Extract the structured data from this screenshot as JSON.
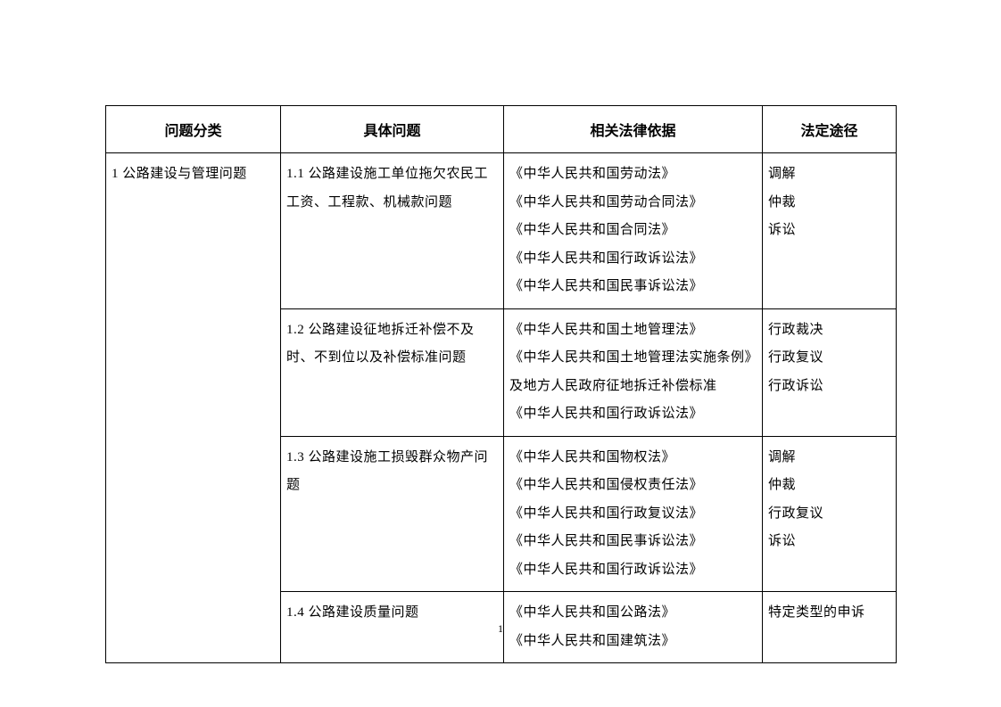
{
  "table": {
    "headers": {
      "category": "问题分类",
      "issue": "具体问题",
      "legal": "相关法律依据",
      "channel": "法定途径"
    },
    "category_label": "1 公路建设与管理问题",
    "rows": [
      {
        "issue": "1.1 公路建设施工单位拖欠农民工工资、工程款、机械款问题",
        "legal": "《中华人民共和国劳动法》\n《中华人民共和国劳动合同法》\n《中华人民共和国合同法》\n《中华人民共和国行政诉讼法》\n《中华人民共和国民事诉讼法》",
        "channel": "调解\n仲裁\n诉讼"
      },
      {
        "issue": "1.2 公路建设征地拆迁补偿不及时、不到位以及补偿标准问题",
        "legal": "《中华人民共和国土地管理法》\n《中华人民共和国土地管理法实施条例》及地方人民政府征地拆迁补偿标准\n《中华人民共和国行政诉讼法》",
        "channel": "行政裁决\n行政复议\n行政诉讼"
      },
      {
        "issue": "1.3  公路建设施工损毁群众物产问题",
        "legal": "《中华人民共和国物权法》\n《中华人民共和国侵权责任法》\n《中华人民共和国行政复议法》\n《中华人民共和国民事诉讼法》\n《中华人民共和国行政诉讼法》",
        "channel": "调解\n仲裁\n行政复议\n诉讼"
      },
      {
        "issue": "1.4 公路建设质量问题",
        "legal": "《中华人民共和国公路法》\n《中华人民共和国建筑法》",
        "channel": "特定类型的申诉"
      }
    ]
  },
  "page_number": "1",
  "styling": {
    "background_color": "#ffffff",
    "border_color": "#000000",
    "text_color": "#000000",
    "header_fontsize": 16,
    "body_fontsize": 15,
    "line_height": 2.1,
    "font_family": "SimSun"
  }
}
